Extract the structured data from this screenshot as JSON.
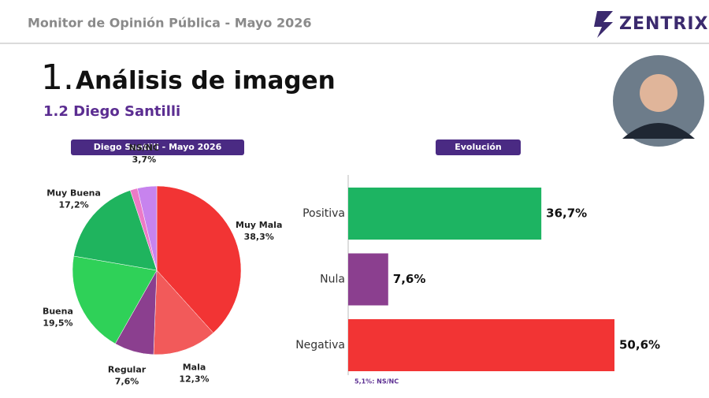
{
  "header": {
    "text": "Monitor de Opinión Pública - Mayo 2026",
    "logo": "ZENTRIX"
  },
  "section_number": "1.",
  "title": "Análisis de imagen",
  "subtitle": "1.2 Diego Santilli",
  "chart_data": [
    {
      "type": "pie",
      "title": "Diego Santilli - Mayo 2026",
      "categories": [
        "Muy Mala",
        "Mala",
        "Regular",
        "Buena",
        "Muy Buena",
        null,
        "NS/NC"
      ],
      "values": [
        38.3,
        12.3,
        7.6,
        19.5,
        17.2,
        1.4,
        3.7
      ],
      "value_labels": [
        "38,3%",
        "12,3%",
        "7,6%",
        "19,5%",
        "17,2%",
        null,
        "3,7%"
      ],
      "colors": [
        "#f23434",
        "#f25a5a",
        "#8b3f8f",
        "#2fd158",
        "#1fb45e",
        "#ec7ac6",
        "#c783ee"
      ]
    },
    {
      "type": "hbar",
      "title": "Evolución",
      "categories": [
        "Positiva",
        "Nula",
        "Negativa"
      ],
      "values": [
        36.7,
        7.6,
        50.6
      ],
      "value_labels": [
        "36,7%",
        "7,6%",
        "50,6%"
      ],
      "colors": [
        "#1db462",
        "#8b3f8f",
        "#f23434"
      ],
      "note": "5,1%: NS/NC"
    }
  ]
}
